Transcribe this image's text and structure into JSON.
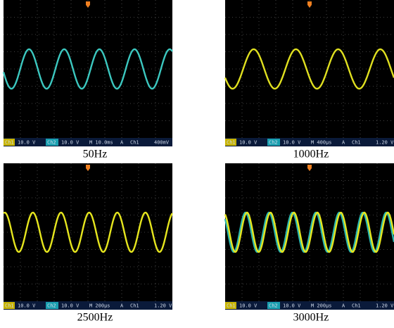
{
  "panels": [
    {
      "caption": "50Hz",
      "status": [
        "Ch1",
        "10.0 V",
        "Ch2",
        "10.0 V",
        "M 10.0ms",
        "A",
        "Ch1",
        "400mV"
      ]
    },
    {
      "caption": "1000Hz",
      "status": [
        "Ch1",
        "10.0 V",
        "Ch2",
        "10.0 V",
        "M 400µs",
        "A",
        "Ch1",
        "1.20 V"
      ]
    },
    {
      "caption": "2500Hz",
      "status": [
        "Ch1",
        "10.0 V",
        "Ch2",
        "10.0 V",
        "M 200µs",
        "A",
        "Ch1",
        "1.20 V"
      ]
    },
    {
      "caption": "3000Hz",
      "status": [
        "Ch1",
        "10.0 V",
        "Ch2",
        "10.0 V",
        "M 200µs",
        "A",
        "Ch1",
        "1.20 V"
      ]
    }
  ]
}
